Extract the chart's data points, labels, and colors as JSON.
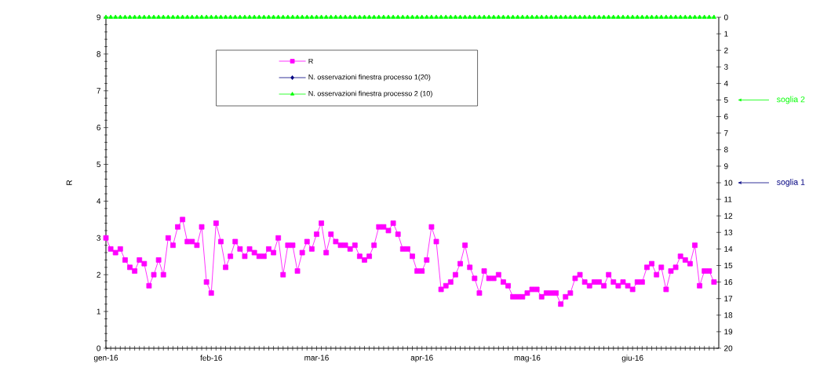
{
  "chart_data": {
    "type": "line",
    "ylabel": "R",
    "categories": [
      "gen-16",
      null,
      null,
      null,
      null,
      null,
      null,
      null,
      null,
      null,
      null,
      null,
      null,
      null,
      null,
      null,
      null,
      null,
      null,
      null,
      null,
      null,
      "feb-16",
      null,
      null,
      null,
      null,
      null,
      null,
      null,
      null,
      null,
      null,
      null,
      null,
      null,
      null,
      null,
      null,
      null,
      null,
      null,
      null,
      null,
      "mar-16",
      null,
      null,
      null,
      null,
      null,
      null,
      null,
      null,
      null,
      null,
      null,
      null,
      null,
      null,
      null,
      null,
      null,
      null,
      null,
      null,
      null,
      "apr-16",
      null,
      null,
      null,
      null,
      null,
      null,
      null,
      null,
      null,
      null,
      null,
      null,
      null,
      null,
      null,
      null,
      null,
      null,
      null,
      null,
      null,
      "mag-16",
      null,
      null,
      null,
      null,
      null,
      null,
      null,
      null,
      null,
      null,
      null,
      null,
      null,
      null,
      null,
      null,
      null,
      null,
      null,
      null,
      null,
      "giu-16",
      null,
      null,
      null,
      null,
      null,
      null,
      null,
      null,
      null,
      null,
      null,
      null,
      null,
      null,
      null,
      null,
      null
    ],
    "series": [
      {
        "name": "R",
        "color": "#ff00ff",
        "marker": "square",
        "values": [
          3.0,
          2.7,
          2.6,
          2.7,
          2.4,
          2.2,
          2.1,
          2.4,
          2.3,
          1.7,
          2.0,
          2.4,
          2.0,
          3.0,
          2.8,
          3.3,
          3.5,
          2.9,
          2.9,
          2.8,
          3.3,
          1.8,
          1.5,
          3.4,
          2.9,
          2.2,
          2.5,
          2.9,
          2.7,
          2.5,
          2.7,
          2.6,
          2.5,
          2.5,
          2.7,
          2.6,
          3.0,
          2.0,
          2.8,
          2.8,
          2.1,
          2.6,
          2.9,
          2.7,
          3.1,
          3.4,
          2.6,
          3.1,
          2.9,
          2.8,
          2.8,
          2.7,
          2.8,
          2.5,
          2.4,
          2.5,
          2.8,
          3.3,
          3.3,
          3.2,
          3.4,
          3.1,
          2.7,
          2.7,
          2.5,
          2.1,
          2.1,
          2.4,
          3.3,
          2.9,
          1.6,
          1.7,
          1.8,
          2.0,
          2.3,
          2.8,
          2.2,
          1.9,
          1.5,
          2.1,
          1.9,
          1.9,
          2.0,
          1.8,
          1.7,
          1.4,
          1.4,
          1.4,
          1.5,
          1.6,
          1.6,
          1.4,
          1.5,
          1.5,
          1.5,
          1.2,
          1.4,
          1.5,
          1.9,
          2.0,
          1.8,
          1.7,
          1.8,
          1.8,
          1.7,
          2.0,
          1.8,
          1.7,
          1.8,
          1.7,
          1.6,
          1.8,
          1.8,
          2.2,
          2.3,
          2.0,
          2.2,
          1.6,
          2.1,
          2.2,
          2.5,
          2.4,
          2.3,
          2.8,
          1.7,
          2.1,
          2.1,
          1.8
        ]
      },
      {
        "name": "N. osservazioni finestra processo 1(20)",
        "color": "#000080",
        "marker": "diamond",
        "axis": "y2",
        "values": [
          null,
          null,
          null,
          null,
          null,
          null,
          null,
          null,
          null,
          null,
          null,
          null,
          null,
          null,
          null,
          null,
          null,
          null,
          null,
          null,
          null,
          null,
          null,
          null,
          null,
          null,
          null,
          null,
          null,
          null,
          null,
          null,
          null,
          null,
          null,
          null,
          null,
          null,
          null,
          null,
          null,
          null,
          null,
          null,
          null,
          null,
          null,
          null,
          null,
          null,
          null,
          null,
          null,
          null,
          null,
          null,
          null,
          null,
          null,
          null,
          null,
          null,
          null,
          null,
          null,
          null,
          null,
          null,
          null,
          null,
          null,
          null,
          null,
          null,
          null,
          null,
          null,
          null,
          null,
          null,
          null,
          null,
          null,
          null,
          null,
          null,
          null,
          null,
          null,
          null,
          null,
          null,
          null,
          null,
          null,
          null,
          null,
          null,
          null,
          null,
          null,
          null,
          null,
          null,
          null,
          null,
          null,
          null,
          null,
          null,
          null,
          null,
          null,
          null,
          null,
          null,
          null,
          null,
          null,
          null,
          null,
          null,
          null,
          null,
          null,
          null,
          null,
          null
        ]
      },
      {
        "name": "N. osservazioni finestra processo 2 (10)",
        "color": "#00ff00",
        "marker": "triangle",
        "axis": "y2",
        "values": [
          0,
          0,
          0,
          0,
          0,
          0,
          0,
          0,
          0,
          0,
          0,
          0,
          0,
          0,
          0,
          0,
          0,
          0,
          0,
          0,
          0,
          0,
          0,
          0,
          0,
          0,
          0,
          0,
          0,
          0,
          0,
          0,
          0,
          0,
          0,
          0,
          0,
          0,
          0,
          0,
          0,
          0,
          0,
          0,
          0,
          0,
          0,
          0,
          0,
          0,
          0,
          0,
          0,
          0,
          0,
          0,
          0,
          0,
          0,
          0,
          0,
          0,
          0,
          0,
          0,
          0,
          0,
          0,
          0,
          0,
          0,
          0,
          0,
          0,
          0,
          0,
          0,
          0,
          0,
          0,
          0,
          0,
          0,
          0,
          0,
          0,
          0,
          0,
          0,
          0,
          0,
          0,
          0,
          0,
          0,
          0,
          0,
          0,
          0,
          0,
          0,
          0,
          0,
          0,
          0,
          0,
          0,
          0,
          0,
          0,
          0,
          0,
          0,
          0,
          0,
          0,
          0,
          0,
          0,
          0,
          0,
          0,
          0,
          0,
          0,
          0,
          0,
          0
        ]
      }
    ],
    "ylim": [
      0,
      9
    ],
    "yticks": [
      0,
      1,
      2,
      3,
      4,
      5,
      6,
      7,
      8,
      9
    ],
    "y2lim": [
      20,
      0
    ],
    "y2ticks": [
      0,
      1,
      2,
      3,
      4,
      5,
      6,
      7,
      8,
      9,
      10,
      11,
      12,
      13,
      14,
      15,
      16,
      17,
      18,
      19,
      20
    ],
    "ref_lines": [
      {
        "axis": "y2",
        "value": 5,
        "label": "soglia 2",
        "color": "#00ff00"
      },
      {
        "axis": "y2",
        "value": 10,
        "label": "soglia 1",
        "color": "#000080"
      }
    ],
    "legend": "top",
    "line_style": "solid",
    "grid": false
  }
}
